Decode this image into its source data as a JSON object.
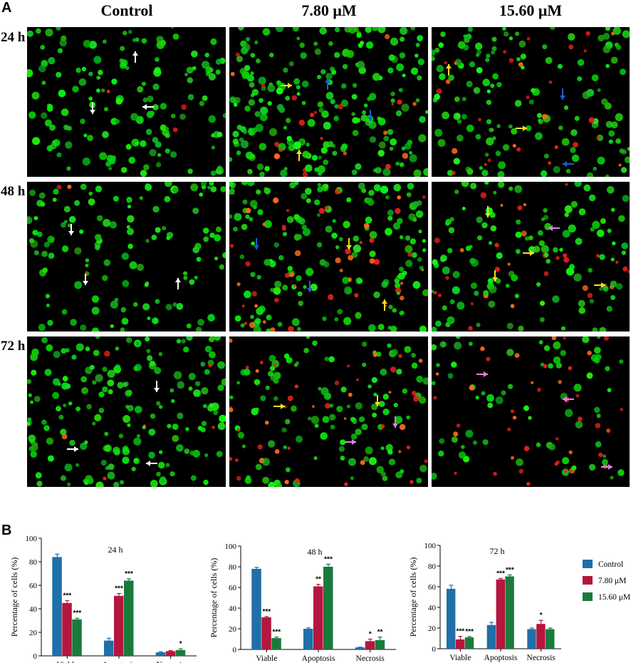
{
  "panel_a": {
    "label": "A",
    "columns": [
      "Control",
      "7.80 μM",
      "15.60 μM"
    ],
    "rows": [
      "24 h",
      "48 h",
      "72 h"
    ]
  },
  "panel_b": {
    "label": "B"
  },
  "colors": {
    "control": "#1f6fa8",
    "mid": "#b5163d",
    "high": "#1a7a3c"
  },
  "chart_data": [
    {
      "type": "bar",
      "title": "24 h",
      "categories": [
        "Viable",
        "Apoptosis",
        "Necrosis"
      ],
      "ylabel": "Percentage of cells (%)",
      "ylim": [
        0,
        100
      ],
      "yticks": [
        0,
        20,
        40,
        60,
        80,
        100
      ],
      "series": [
        {
          "color": "#1f6fa8",
          "values": [
            84,
            13,
            3
          ],
          "errors": [
            2.5,
            2,
            0.5
          ]
        },
        {
          "color": "#b5163d",
          "values": [
            45,
            51,
            4
          ],
          "errors": [
            2,
            2,
            0.5
          ],
          "sig": [
            "***",
            "***",
            ""
          ]
        },
        {
          "color": "#1a7a3c",
          "values": [
            31,
            64,
            5
          ],
          "errors": [
            1,
            1.5,
            1
          ],
          "sig": [
            "***",
            "***",
            "*"
          ]
        }
      ]
    },
    {
      "type": "bar",
      "title": "48 h",
      "categories": [
        "Viable",
        "Apoptosis",
        "Necrosis"
      ],
      "ylabel": "Percentage of cells (%)",
      "ylim": [
        0,
        100
      ],
      "yticks": [
        0,
        20,
        40,
        60,
        80,
        100
      ],
      "series": [
        {
          "color": "#1f6fa8",
          "values": [
            78,
            20,
            2
          ],
          "errors": [
            1.5,
            1,
            0.3
          ]
        },
        {
          "color": "#b5163d",
          "values": [
            31,
            61,
            8
          ],
          "errors": [
            0.8,
            2,
            2
          ],
          "sig": [
            "***",
            "**",
            "*"
          ]
        },
        {
          "color": "#1a7a3c",
          "values": [
            11,
            80,
            9
          ],
          "errors": [
            1,
            2.5,
            3
          ],
          "sig": [
            "***",
            "***",
            "**"
          ]
        }
      ]
    },
    {
      "type": "bar",
      "title": "72 h",
      "categories": [
        "Viable",
        "Apoptosis",
        "Necrosis"
      ],
      "ylabel": "Percentage of cells (%)",
      "ylim": [
        0,
        100
      ],
      "yticks": [
        0,
        20,
        40,
        60,
        80,
        100
      ],
      "legend": {
        "placement": "right",
        "labels": [
          "Control",
          "7.80 μM",
          "15.60 μM"
        ]
      },
      "series": [
        {
          "color": "#1f6fa8",
          "values": [
            58,
            23,
            19
          ],
          "errors": [
            3.5,
            2.5,
            1
          ]
        },
        {
          "color": "#b5163d",
          "values": [
            9,
            67,
            24
          ],
          "errors": [
            3,
            1,
            3.5
          ],
          "sig": [
            "***",
            "***",
            "*"
          ]
        },
        {
          "color": "#1a7a3c",
          "values": [
            11,
            70,
            19
          ],
          "errors": [
            0.8,
            1.5,
            1
          ],
          "sig": [
            "***",
            "***",
            ""
          ]
        }
      ]
    }
  ]
}
